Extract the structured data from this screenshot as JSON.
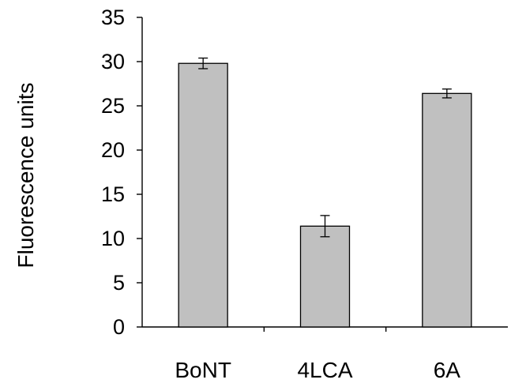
{
  "chart_data": {
    "type": "bar",
    "title": "",
    "xlabel": "",
    "ylabel": "Fluorescence units",
    "ylim": [
      0,
      35
    ],
    "yticks": [
      0,
      5,
      10,
      15,
      20,
      25,
      30,
      35
    ],
    "ytick_labels": [
      "0",
      "5",
      "10",
      "15",
      "20",
      "25",
      "30",
      "35"
    ],
    "categories": [
      "BoNT",
      "4LCA",
      "6A"
    ],
    "values": [
      29.8,
      11.4,
      26.4
    ],
    "errors": [
      0.6,
      1.2,
      0.5
    ],
    "grid": false,
    "legend": "none",
    "colors": {
      "bar_fill": "#c0c0c0",
      "bar_stroke": "#000000",
      "axis": "#000000"
    }
  }
}
